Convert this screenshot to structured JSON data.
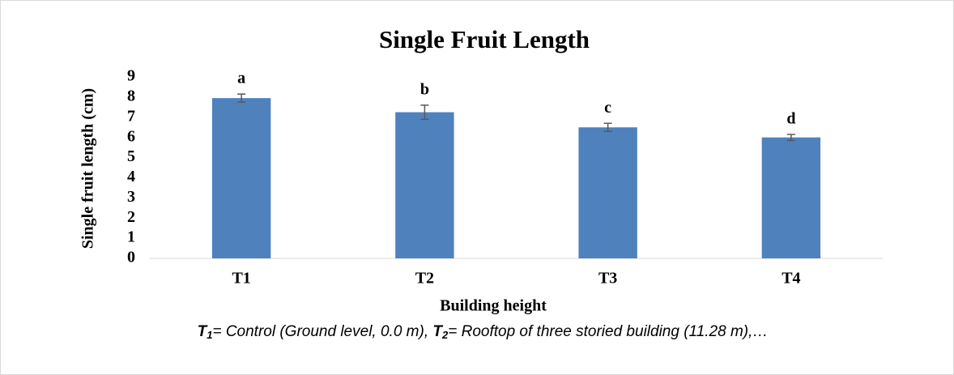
{
  "chart_data": {
    "type": "bar",
    "title": "Single Fruit Length",
    "x_label": "Building height",
    "y_label": "Single fruit length (cm)",
    "categories": [
      "T1",
      "T2",
      "T3",
      "T4"
    ],
    "values": [
      7.95,
      7.25,
      6.5,
      6.0
    ],
    "errors": [
      0.2,
      0.35,
      0.2,
      0.15
    ],
    "letters": [
      "a",
      "b",
      "c",
      "d"
    ],
    "color": "#4f81bd",
    "ylim": [
      0,
      9
    ],
    "yticks": [
      0,
      1,
      2,
      3,
      4,
      5,
      6,
      7,
      8,
      9
    ],
    "grid": false,
    "caption": [
      {
        "symbol": "T",
        "sub": "1",
        "text": "= Control (Ground level, 0.0 m), "
      },
      {
        "symbol": "T",
        "sub": "2",
        "text": "= Rooftop of three storied building (11.28 m),…"
      }
    ]
  }
}
